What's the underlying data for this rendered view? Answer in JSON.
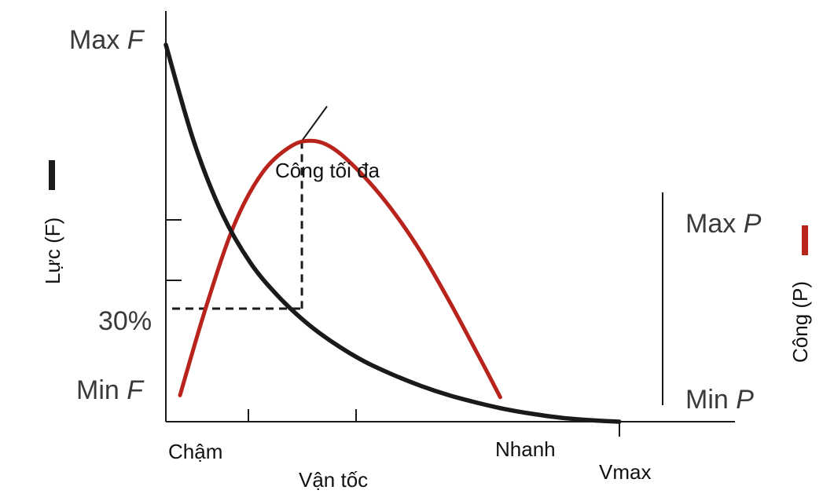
{
  "chart_data": {
    "type": "line",
    "title": "",
    "ylabel_left": "Lực (F)",
    "ylabel_right": "Công (P)",
    "xlabel": "Vận tốc",
    "x_tick_labels": {
      "slow": "Chậm",
      "fast": "Nhanh",
      "vmax": "Vmax"
    },
    "left_axis_labels": {
      "max_prefix": "Max ",
      "max_var": "F",
      "min_prefix": "Min ",
      "min_var": "F",
      "thirty": "30%"
    },
    "right_axis_labels": {
      "max_prefix": "Max ",
      "max_var": "P",
      "min_prefix": "Min ",
      "min_var": "P"
    },
    "annotation": "Công tối đa",
    "xlim": [
      0,
      1
    ],
    "ylim": [
      0,
      1
    ],
    "series": [
      {
        "key": "force",
        "color": "#1a1a1a",
        "x": [
          0.0,
          0.05,
          0.1,
          0.15,
          0.2,
          0.25,
          0.3,
          0.35,
          0.4,
          0.45,
          0.5,
          0.55,
          0.6,
          0.65,
          0.7,
          0.75,
          0.8
        ],
        "y": [
          1.0,
          0.74,
          0.55,
          0.42,
          0.33,
          0.26,
          0.205,
          0.16,
          0.125,
          0.095,
          0.07,
          0.05,
          0.033,
          0.02,
          0.01,
          0.004,
          0.0
        ]
      },
      {
        "key": "power",
        "color": "#b8241c",
        "x": [
          0.025,
          0.07,
          0.12,
          0.17,
          0.22,
          0.26,
          0.3,
          0.35,
          0.4,
          0.45,
          0.5,
          0.55,
          0.59
        ],
        "y": [
          0.07,
          0.3,
          0.52,
          0.66,
          0.73,
          0.745,
          0.72,
          0.65,
          0.56,
          0.45,
          0.32,
          0.18,
          0.065
        ]
      }
    ],
    "max_power_point": {
      "x": 0.24,
      "y_force": 0.3,
      "y_power": 0.745
    },
    "legend_marks": {
      "force_color": "#1a1a1a",
      "power_color": "#b8241c"
    },
    "grid": false
  }
}
